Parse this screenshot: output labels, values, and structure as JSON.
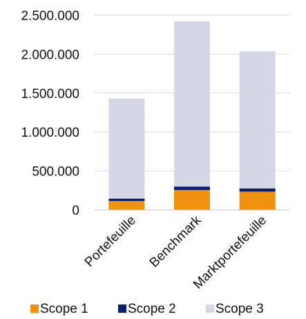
{
  "chart_data": {
    "type": "bar",
    "stacked": true,
    "categories": [
      "Portefeuille",
      "Benchmark",
      "Marktportefeuille"
    ],
    "series": [
      {
        "name": "Scope 1",
        "color": "#f0900f",
        "values": [
          115000,
          255000,
          235000
        ]
      },
      {
        "name": "Scope 2",
        "color": "#0b1f6e",
        "values": [
          30000,
          45000,
          40000
        ]
      },
      {
        "name": "Scope 3",
        "color": "#d4d8e4",
        "values": [
          1285000,
          2120000,
          1760000
        ]
      }
    ],
    "ylim": [
      0,
      2500000
    ],
    "y_ticks": [
      {
        "value": 0,
        "label": "0"
      },
      {
        "value": 500000,
        "label": "500.000"
      },
      {
        "value": 1000000,
        "label": "1.000.000"
      },
      {
        "value": 1500000,
        "label": "1.500.000"
      },
      {
        "value": 2000000,
        "label": "2.000.000"
      },
      {
        "value": 2500000,
        "label": "2.500.000"
      }
    ],
    "grid": true,
    "legend_position": "bottom"
  }
}
